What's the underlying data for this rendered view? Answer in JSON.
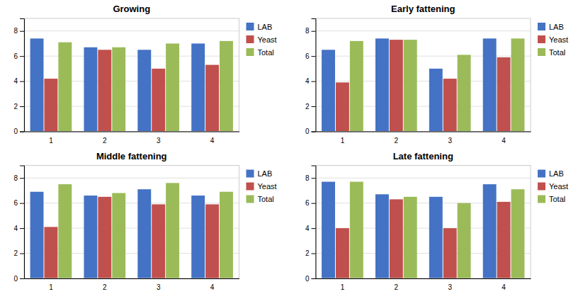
{
  "chart_data": [
    {
      "type": "bar",
      "title": "Growing",
      "categories": [
        "1",
        "2",
        "3",
        "4"
      ],
      "series": [
        {
          "name": "LAB",
          "color": "#4472c4",
          "values": [
            7.4,
            6.7,
            6.5,
            7.0
          ]
        },
        {
          "name": "Yeast",
          "color": "#c0504d",
          "values": [
            4.2,
            6.5,
            5.0,
            5.3
          ]
        },
        {
          "name": "Total",
          "color": "#9bbb59",
          "values": [
            7.1,
            6.7,
            7.0,
            7.2
          ]
        }
      ],
      "ylim": [
        0,
        9
      ],
      "yticks": [
        0,
        2,
        4,
        6,
        8
      ],
      "grid": true,
      "legend": "right"
    },
    {
      "type": "bar",
      "title": "Early fattening",
      "categories": [
        "1",
        "2",
        "3",
        "4"
      ],
      "series": [
        {
          "name": "LAB",
          "color": "#4472c4",
          "values": [
            6.5,
            7.4,
            5.0,
            7.4
          ]
        },
        {
          "name": "Yeast",
          "color": "#c0504d",
          "values": [
            3.9,
            7.3,
            4.2,
            5.9
          ]
        },
        {
          "name": "Total",
          "color": "#9bbb59",
          "values": [
            7.2,
            7.3,
            6.1,
            7.4
          ]
        }
      ],
      "ylim": [
        0,
        9
      ],
      "yticks": [
        0,
        2,
        4,
        6,
        8
      ],
      "grid": true,
      "legend": "right"
    },
    {
      "type": "bar",
      "title": "Middle fattening",
      "categories": [
        "1",
        "2",
        "3",
        "4"
      ],
      "series": [
        {
          "name": "LAB",
          "color": "#4472c4",
          "values": [
            6.9,
            6.6,
            7.1,
            6.6
          ]
        },
        {
          "name": "Yeast",
          "color": "#c0504d",
          "values": [
            4.1,
            6.5,
            5.9,
            5.9
          ]
        },
        {
          "name": "Total",
          "color": "#9bbb59",
          "values": [
            7.5,
            6.8,
            7.6,
            6.9
          ]
        }
      ],
      "ylim": [
        0,
        9
      ],
      "yticks": [
        0,
        2,
        4,
        6,
        8
      ],
      "grid": true,
      "legend": "right"
    },
    {
      "type": "bar",
      "title": "Late fattening",
      "categories": [
        "1",
        "2",
        "3",
        "4"
      ],
      "series": [
        {
          "name": "LAB",
          "color": "#4472c4",
          "values": [
            7.7,
            6.7,
            6.5,
            7.5
          ]
        },
        {
          "name": "Yeast",
          "color": "#c0504d",
          "values": [
            4.0,
            6.3,
            4.0,
            6.1
          ]
        },
        {
          "name": "Total",
          "color": "#9bbb59",
          "values": [
            7.7,
            6.5,
            6.0,
            7.1
          ]
        }
      ],
      "ylim": [
        0,
        9
      ],
      "yticks": [
        0,
        2,
        4,
        6,
        8
      ],
      "grid": true,
      "legend": "right"
    }
  ]
}
